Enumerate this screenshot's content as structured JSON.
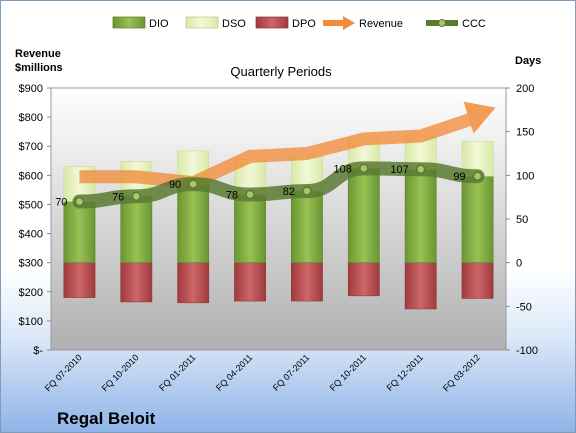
{
  "chart_data": {
    "type": "bar",
    "title": "Quarterly Periods",
    "company": "Regal Beloit",
    "categories": [
      "FQ 07-2010",
      "FQ 10-2010",
      "FQ 01-2011",
      "FQ 04-2011",
      "FQ 07-2011",
      "FQ 10-2011",
      "FQ 12-2011",
      "FQ 03-2012"
    ],
    "left_axis": {
      "label_line1": "Revenue",
      "label_line2": "$millions",
      "ylim": [
        0,
        900
      ],
      "ticks": [
        0,
        100,
        200,
        300,
        400,
        500,
        600,
        700,
        800,
        900
      ],
      "tick_labels": [
        "$-",
        "$100",
        "$200",
        "$300",
        "$400",
        "$500",
        "$600",
        "$700",
        "$800",
        "$900"
      ]
    },
    "right_axis": {
      "label": "Days",
      "ylim": [
        -100,
        200
      ],
      "ticks": [
        -100,
        -50,
        0,
        50,
        100,
        150,
        200
      ],
      "tick_labels": [
        "-100",
        "-50",
        "0",
        "50",
        "100",
        "150",
        "200"
      ]
    },
    "series": [
      {
        "name": "DIO",
        "axis": "right",
        "values": [
          70,
          76,
          90,
          78,
          82,
          108,
          107,
          99
        ],
        "color": "#76a03a"
      },
      {
        "name": "DSO",
        "axis": "right",
        "values": [
          40,
          40,
          38,
          40,
          40,
          34,
          38,
          40
        ],
        "color": "#e4f0b8"
      },
      {
        "name": "DPO",
        "axis": "right",
        "values": [
          40,
          45,
          46,
          44,
          44,
          38,
          53,
          41
        ],
        "color": "#b4484a"
      },
      {
        "name": "Revenue",
        "axis": "left",
        "values": [
          595,
          595,
          575,
          665,
          675,
          725,
          735,
          805
        ],
        "color": "#f28c3a"
      },
      {
        "name": "CCC",
        "axis": "right",
        "values": [
          70,
          76,
          90,
          78,
          82,
          108,
          107,
          99
        ],
        "color": "#5a7a32"
      }
    ],
    "data_labels": [
      "70",
      "76",
      "90",
      "78",
      "82",
      "108",
      "107",
      "99"
    ],
    "legend": {
      "position": "top"
    },
    "grid": false
  }
}
